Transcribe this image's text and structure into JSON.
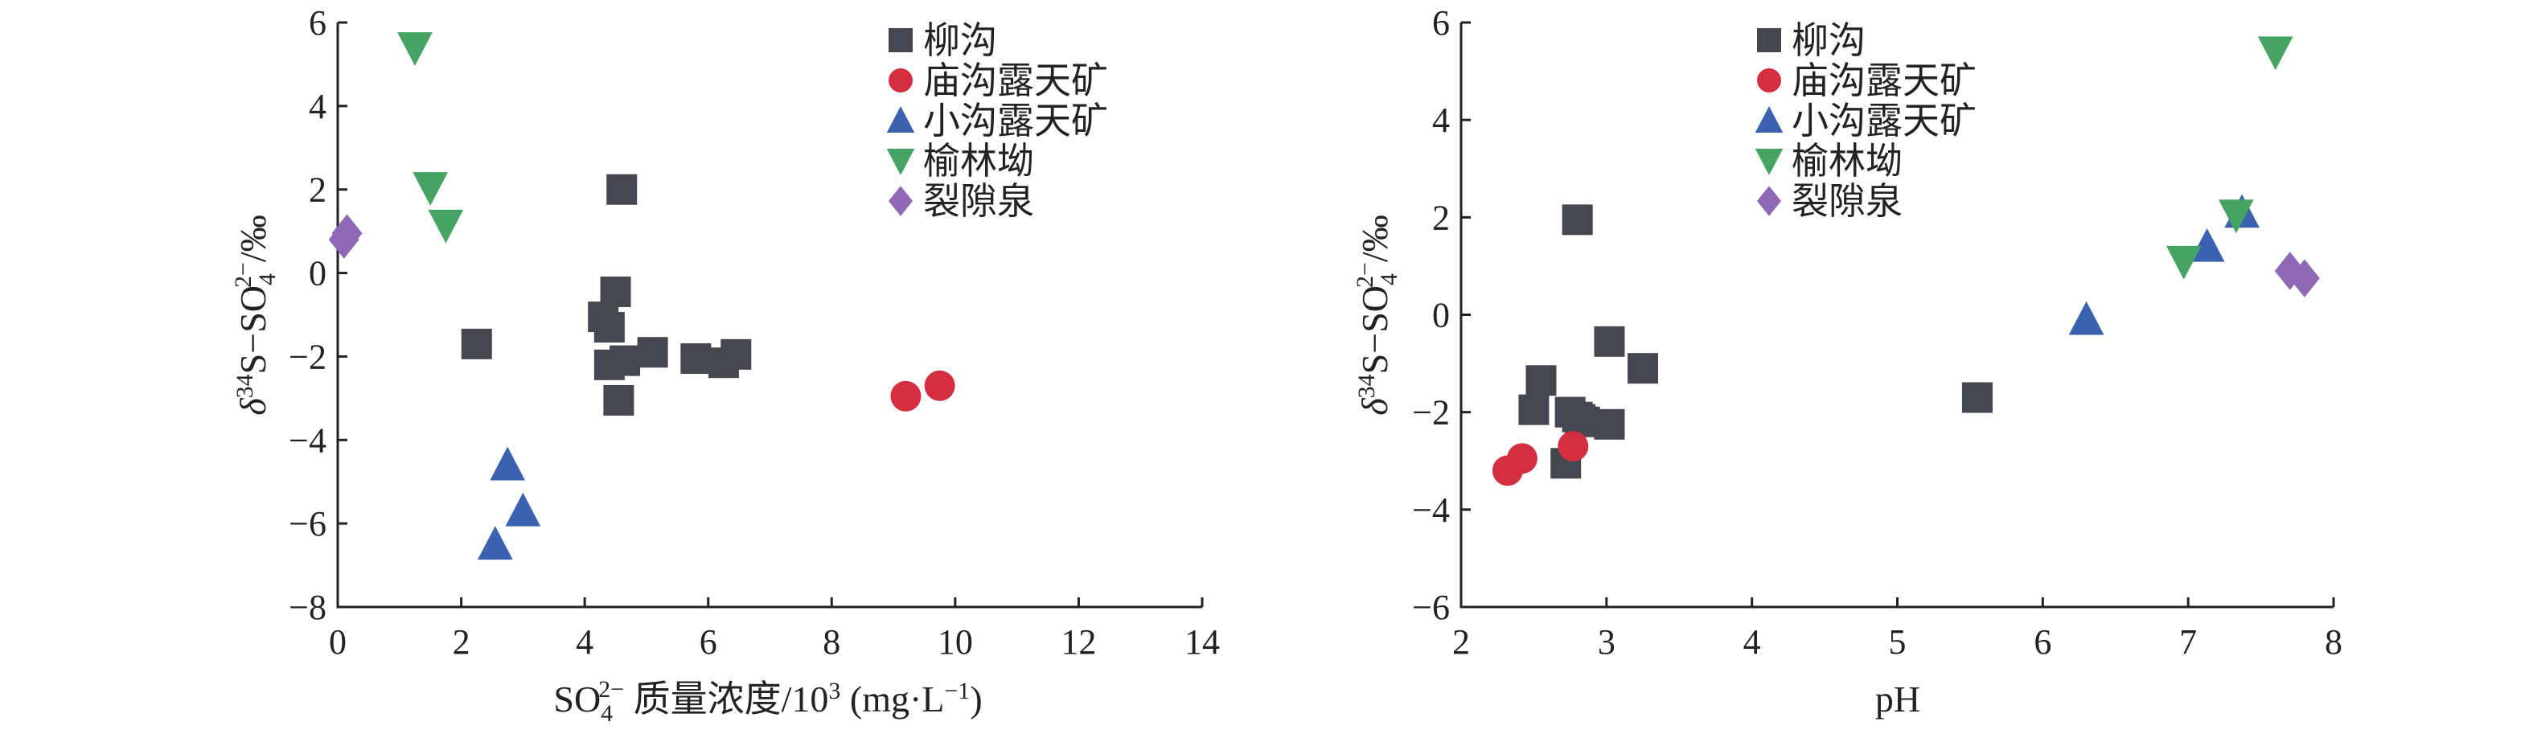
{
  "chart_data": [
    {
      "type": "scatter",
      "xlabel": {
        "main": "SO",
        "sub": "4",
        "sup": "2−",
        "rest": " 质量浓度/10",
        "exp": "3",
        "unit_open": " (mg·L",
        "unit_sup": "−1",
        "unit_close": ")"
      },
      "ylabel": {
        "delta": "δ",
        "sup34": "34",
        "mid": "S−SO",
        "sub": "4",
        "sup": "2−",
        "end": "/‰"
      },
      "xlim": [
        0,
        14
      ],
      "ylim": [
        -8,
        6
      ],
      "xticks": [
        "0",
        "2",
        "4",
        "6",
        "8",
        "10",
        "12",
        "14"
      ],
      "yticks": [
        "−8",
        "−6",
        "−4",
        "−2",
        "0",
        "2",
        "4",
        "6"
      ],
      "legend_position": "top-right",
      "series": [
        {
          "name": "柳沟",
          "marker": "square",
          "color": "#45464f",
          "points": [
            [
              4.6,
              2.0
            ],
            [
              2.25,
              -1.7
            ],
            [
              4.5,
              -0.45
            ],
            [
              4.3,
              -1.05
            ],
            [
              4.4,
              -1.3
            ],
            [
              4.4,
              -2.2
            ],
            [
              4.65,
              -2.1
            ],
            [
              5.1,
              -1.9
            ],
            [
              5.8,
              -2.05
            ],
            [
              6.25,
              -2.15
            ],
            [
              6.45,
              -1.95
            ],
            [
              4.55,
              -3.05
            ]
          ]
        },
        {
          "name": "庙沟露天矿",
          "marker": "circle",
          "color": "#d42f41",
          "points": [
            [
              9.2,
              -2.95
            ],
            [
              9.75,
              -2.7
            ]
          ]
        },
        {
          "name": "小沟露天矿",
          "marker": "triangle-up",
          "color": "#3a62b0",
          "points": [
            [
              2.75,
              -4.6
            ],
            [
              3.0,
              -5.7
            ],
            [
              2.55,
              -6.5
            ]
          ]
        },
        {
          "name": "榆林坳",
          "marker": "triangle-down",
          "color": "#45a463",
          "points": [
            [
              1.25,
              5.4
            ],
            [
              1.5,
              2.05
            ],
            [
              1.75,
              1.15
            ]
          ]
        },
        {
          "name": "裂隙泉",
          "marker": "diamond",
          "color": "#8e68b5",
          "points": [
            [
              0.1,
              0.8
            ],
            [
              0.15,
              0.95
            ]
          ]
        }
      ]
    },
    {
      "type": "scatter",
      "xlabel": {
        "main": "pH"
      },
      "ylabel": {
        "delta": "δ",
        "sup34": "34",
        "mid": "S−SO",
        "sub": "4",
        "sup": "2−",
        "end": "/‰"
      },
      "xlim": [
        2,
        8
      ],
      "ylim": [
        -6,
        6
      ],
      "xticks": [
        "2",
        "3",
        "4",
        "5",
        "6",
        "7",
        "8"
      ],
      "yticks": [
        "−6",
        "−4",
        "−2",
        "0",
        "2",
        "4",
        "6"
      ],
      "legend_position": "top-center",
      "series": [
        {
          "name": "柳沟",
          "marker": "square",
          "color": "#45464f",
          "points": [
            [
              2.8,
              1.95
            ],
            [
              3.02,
              -0.55
            ],
            [
              3.25,
              -1.1
            ],
            [
              2.55,
              -1.35
            ],
            [
              2.5,
              -1.95
            ],
            [
              2.75,
              -2.0
            ],
            [
              2.8,
              -2.1
            ],
            [
              2.85,
              -2.2
            ],
            [
              3.02,
              -2.25
            ],
            [
              2.72,
              -3.05
            ],
            [
              5.55,
              -1.7
            ],
            [
              2.82,
              -2.15
            ]
          ]
        },
        {
          "name": "庙沟露天矿",
          "marker": "circle",
          "color": "#d42f41",
          "points": [
            [
              2.32,
              -3.2
            ],
            [
              2.42,
              -2.95
            ],
            [
              2.77,
              -2.7
            ]
          ]
        },
        {
          "name": "小沟露天矿",
          "marker": "triangle-up",
          "color": "#3a62b0",
          "points": [
            [
              6.3,
              -0.1
            ],
            [
              7.13,
              1.4
            ],
            [
              7.37,
              2.1
            ]
          ]
        },
        {
          "name": "榆林坳",
          "marker": "triangle-down",
          "color": "#45a463",
          "points": [
            [
              6.97,
              1.1
            ],
            [
              7.33,
              2.05
            ],
            [
              7.6,
              5.4
            ]
          ]
        },
        {
          "name": "裂隙泉",
          "marker": "diamond",
          "color": "#8e68b5",
          "points": [
            [
              7.7,
              0.9
            ],
            [
              7.8,
              0.75
            ]
          ]
        }
      ]
    }
  ]
}
